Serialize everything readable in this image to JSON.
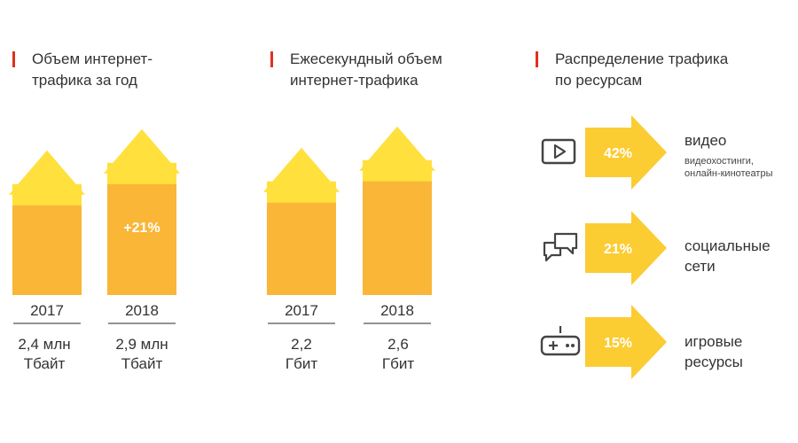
{
  "colors": {
    "bar": "#f9b637",
    "arrow": "#ffe03d",
    "accent": "#e0301e",
    "distribution_arrow": "#fccc33",
    "icon": "#444444"
  },
  "chart_data": [
    {
      "type": "bar",
      "title": "Объем интернет-трафика за год",
      "categories": [
        "2017",
        "2018"
      ],
      "values": [
        2.4,
        2.9
      ],
      "unit": "млн Тбайт",
      "value_labels": [
        "2,4 млн Тбайт",
        "2,9 млн Тбайт"
      ],
      "annotation": "+21%",
      "ylim": [
        0,
        3.2
      ]
    },
    {
      "type": "bar",
      "title": "Ежесекундный объем интернет-трафика",
      "categories": [
        "2017",
        "2018"
      ],
      "values": [
        2.2,
        2.6
      ],
      "unit": "Гбит",
      "value_labels": [
        "2,2 Гбит",
        "2,6 Гбит"
      ],
      "ylim": [
        0,
        3.2
      ]
    },
    {
      "type": "bar",
      "title": "Распределение трафика по ресурсам",
      "categories": [
        "видео",
        "социальные сети",
        "игровые ресурсы"
      ],
      "values": [
        42,
        21,
        15
      ],
      "unit": "%",
      "items": [
        {
          "pct": "42%",
          "label": "видео",
          "sublabel": "видеохостинги, онлайн-кинотеатры",
          "icon": "video-play-icon"
        },
        {
          "pct": "21%",
          "label": "социальные сети",
          "sublabel": "",
          "icon": "chat-bubbles-icon"
        },
        {
          "pct": "15%",
          "label": "игровые ресурсы",
          "sublabel": "",
          "icon": "gamepad-icon"
        }
      ]
    }
  ],
  "annual": {
    "title_line1": "Объем интернет-",
    "title_line2": "трафика за год",
    "bars": [
      {
        "year": "2017",
        "value_line1": "2,4 млн",
        "value_line2": "Тбайт"
      },
      {
        "year": "2018",
        "value_line1": "2,9 млн",
        "value_line2": "Тбайт"
      }
    ]
  },
  "persecond": {
    "title_line1": "Ежесекундный объем",
    "title_line2": "интернет-трафика",
    "bars": [
      {
        "year": "2017",
        "value_line1": "2,2",
        "value_line2": "Гбит"
      },
      {
        "year": "2018",
        "value_line1": "2,6",
        "value_line2": "Гбит"
      }
    ]
  },
  "distribution": {
    "title_line1": "Распределение трафика",
    "title_line2": "по ресурсам",
    "items": [
      {
        "label_line1": "видео",
        "label_line2": "",
        "sub_line1": "видеохостинги,",
        "sub_line2": "онлайн-кинотеатры"
      },
      {
        "label_line1": "социальные",
        "label_line2": "сети",
        "sub_line1": "",
        "sub_line2": ""
      },
      {
        "label_line1": "игровые",
        "label_line2": "ресурсы",
        "sub_line1": "",
        "sub_line2": ""
      }
    ]
  }
}
